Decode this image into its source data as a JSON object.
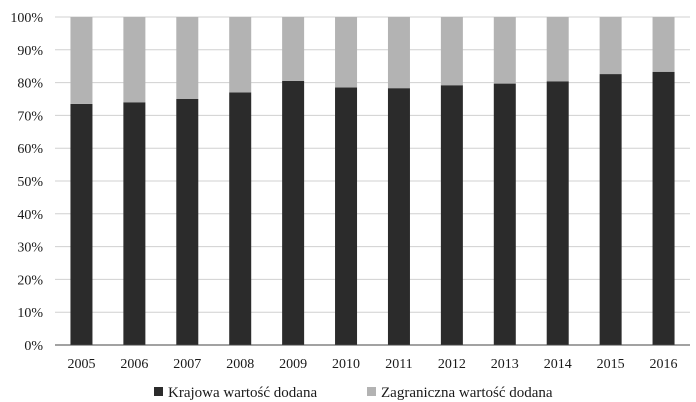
{
  "chart_data": {
    "type": "bar",
    "stacked": true,
    "title": "",
    "xlabel": "",
    "ylabel": "",
    "categories": [
      "2005",
      "2006",
      "2007",
      "2008",
      "2009",
      "2010",
      "2011",
      "2012",
      "2013",
      "2014",
      "2015",
      "2016"
    ],
    "series": [
      {
        "name": "Krajowa wartość dodana",
        "color": "#2b2b2b",
        "values": [
          73.5,
          74,
          75,
          77,
          80.5,
          78.5,
          78.3,
          79.2,
          79.7,
          80.4,
          82.6,
          83.3
        ]
      },
      {
        "name": "Zagraniczna wartość dodana",
        "color": "#b3b3b3",
        "values": [
          26.5,
          26,
          25,
          23,
          19.5,
          21.5,
          21.7,
          20.8,
          20.3,
          19.6,
          17.4,
          16.7
        ]
      }
    ],
    "ylim": [
      0,
      100
    ],
    "yticks": [
      "0%",
      "10%",
      "20%",
      "30%",
      "40%",
      "50%",
      "60%",
      "70%",
      "80%",
      "90%",
      "100%"
    ],
    "grid": true,
    "legend_position": "bottom"
  }
}
